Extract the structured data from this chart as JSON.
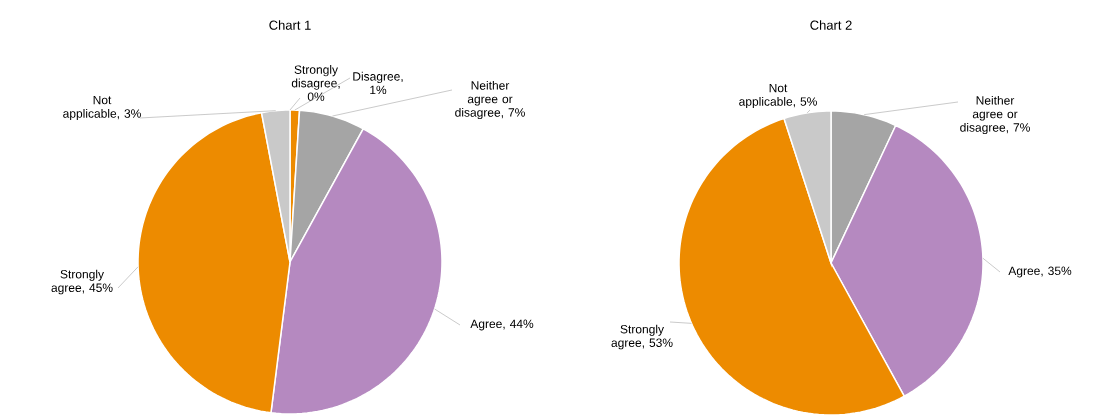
{
  "chart_data": [
    {
      "type": "pie",
      "title": "Chart 1",
      "categories": [
        "Strongly disagree",
        "Disagree",
        "Neither agree or disagree",
        "Agree",
        "Strongly agree",
        "Not applicable"
      ],
      "values": [
        0,
        1,
        7,
        44,
        45,
        3
      ],
      "colors": [
        "#7f7f7f",
        "#ed8b00",
        "#a5a5a5",
        "#b589c0",
        "#ed8b00",
        "#c9c9c9"
      ],
      "value_labels": [
        ", 0%",
        ", 1%",
        ", 7%",
        ", 44%",
        ", 45%",
        ", 3%"
      ]
    },
    {
      "type": "pie",
      "title": "Chart 2",
      "categories": [
        "Neither agree or disagree",
        "Agree",
        "Strongly agree",
        "Not applicable"
      ],
      "values": [
        7,
        35,
        53,
        5
      ],
      "colors": [
        "#a5a5a5",
        "#b589c0",
        "#ed8b00",
        "#c9c9c9"
      ],
      "value_labels": [
        ", 7%",
        ", 35%",
        ", 53%",
        ", 5%"
      ]
    }
  ]
}
